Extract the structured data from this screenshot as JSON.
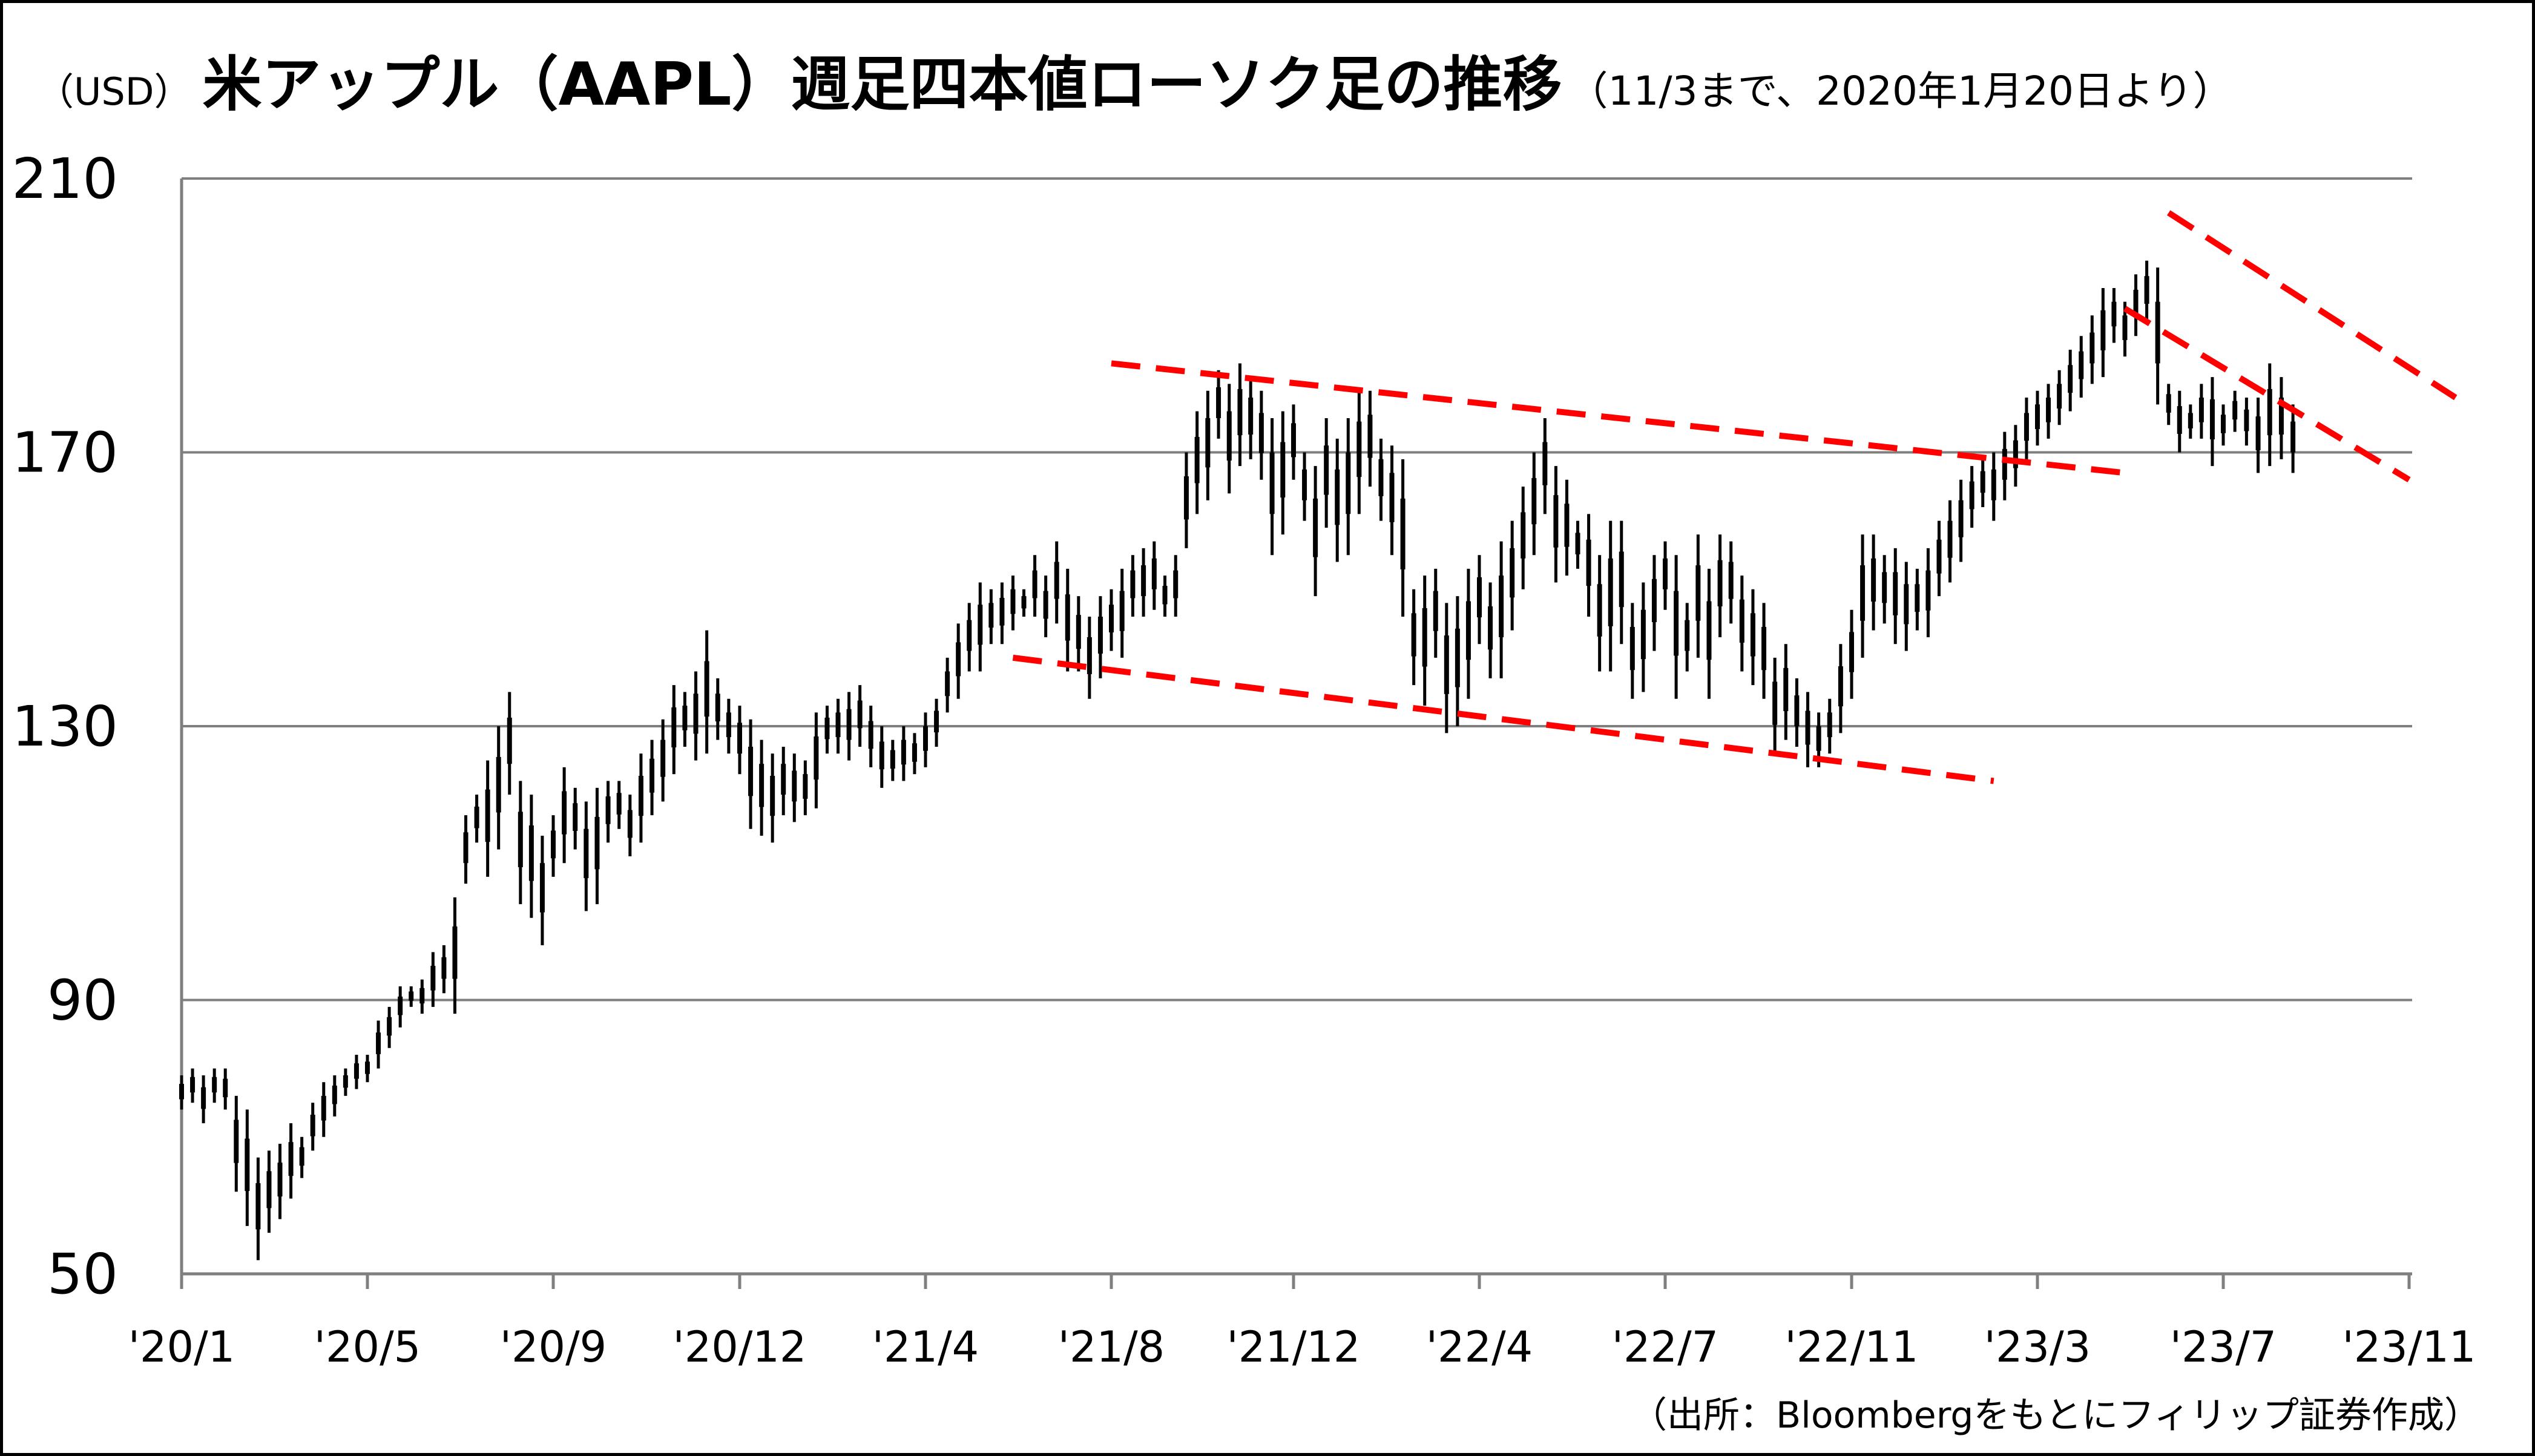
{
  "title": {
    "prefix": "（USD）",
    "main": "米アップル（AAPL）週足四本値ローソク足の推移",
    "note": "（11/3まで、2020年1月20日より）"
  },
  "source": "（出所：Bloombergをもとにフィリップ証券作成）",
  "chart_data": {
    "type": "candlestick",
    "title": "米アップル（AAPL）週足四本値ローソク足の推移",
    "ylabel": "（USD）",
    "ylim": [
      50,
      210
    ],
    "yticks": [
      "50",
      "90",
      "130",
      "170",
      "210"
    ],
    "xticks": [
      "'20/1",
      "'20/5",
      "'20/9",
      "'20/12",
      "'21/4",
      "'21/8",
      "'21/12",
      "'22/4",
      "'22/7",
      "'22/11",
      "'23/3",
      "'23/7",
      "'23/11"
    ],
    "grid": "horizontal",
    "week_count": 194,
    "weekly_ranges": [
      [
        74,
        79
      ],
      [
        75,
        80
      ],
      [
        72,
        79
      ],
      [
        75,
        80
      ],
      [
        74,
        80
      ],
      [
        62,
        76
      ],
      [
        57,
        74
      ],
      [
        52,
        67
      ],
      [
        56,
        68
      ],
      [
        58,
        69
      ],
      [
        61,
        72
      ],
      [
        64,
        70
      ],
      [
        68,
        75
      ],
      [
        70,
        78
      ],
      [
        73,
        79
      ],
      [
        76,
        80
      ],
      [
        77,
        82
      ],
      [
        78,
        82
      ],
      [
        80,
        87
      ],
      [
        83,
        89
      ],
      [
        86,
        92
      ],
      [
        89,
        92
      ],
      [
        88,
        93
      ],
      [
        89,
        97
      ],
      [
        91,
        98
      ],
      [
        88,
        105
      ],
      [
        107,
        117
      ],
      [
        113,
        120
      ],
      [
        108,
        125
      ],
      [
        112,
        130
      ],
      [
        120,
        135
      ],
      [
        104,
        122
      ],
      [
        102,
        120
      ],
      [
        98,
        114
      ],
      [
        108,
        117
      ],
      [
        110,
        124
      ],
      [
        112,
        121
      ],
      [
        103,
        119
      ],
      [
        104,
        121
      ],
      [
        113,
        122
      ],
      [
        115,
        122
      ],
      [
        111,
        120
      ],
      [
        113,
        126
      ],
      [
        117,
        128
      ],
      [
        119,
        131
      ],
      [
        123,
        136
      ],
      [
        127,
        135
      ],
      [
        125,
        138
      ],
      [
        126,
        144
      ],
      [
        128,
        137
      ],
      [
        126,
        134
      ],
      [
        123,
        133
      ],
      [
        115,
        131
      ],
      [
        114,
        128
      ],
      [
        113,
        126
      ],
      [
        117,
        127
      ],
      [
        116,
        126
      ],
      [
        117,
        125
      ],
      [
        118,
        132
      ],
      [
        126,
        133
      ],
      [
        126,
        134
      ],
      [
        125,
        135
      ],
      [
        127,
        136
      ],
      [
        124,
        133
      ],
      [
        121,
        130
      ],
      [
        122,
        128
      ],
      [
        122,
        130
      ],
      [
        123,
        129
      ],
      [
        124,
        132
      ],
      [
        127,
        134
      ],
      [
        132,
        140
      ],
      [
        134,
        145
      ],
      [
        138,
        148
      ],
      [
        138,
        151
      ],
      [
        142,
        150
      ],
      [
        142,
        151
      ],
      [
        144,
        152
      ],
      [
        146,
        150
      ],
      [
        146,
        155
      ],
      [
        143,
        152
      ],
      [
        145,
        157
      ],
      [
        138,
        153
      ],
      [
        138,
        149
      ],
      [
        134,
        146
      ],
      [
        137,
        149
      ],
      [
        141,
        150
      ],
      [
        140,
        153
      ],
      [
        146,
        155
      ],
      [
        146,
        156
      ],
      [
        147,
        157
      ],
      [
        146,
        152
      ],
      [
        146,
        155
      ],
      [
        156,
        170
      ],
      [
        161,
        176
      ],
      [
        163,
        179
      ],
      [
        172,
        182
      ],
      [
        164,
        180
      ],
      [
        168,
        183
      ],
      [
        169,
        181
      ],
      [
        166,
        179
      ],
      [
        155,
        175
      ],
      [
        158,
        176
      ],
      [
        166,
        177
      ],
      [
        160,
        170
      ],
      [
        149,
        168
      ],
      [
        159,
        175
      ],
      [
        154,
        172
      ],
      [
        155,
        175
      ],
      [
        161,
        179
      ],
      [
        165,
        179
      ],
      [
        160,
        172
      ],
      [
        155,
        171
      ],
      [
        146,
        169
      ],
      [
        136,
        150
      ],
      [
        133,
        152
      ],
      [
        140,
        153
      ],
      [
        129,
        148
      ],
      [
        130,
        149
      ],
      [
        134,
        153
      ],
      [
        142,
        155
      ],
      [
        137,
        151
      ],
      [
        137,
        157
      ],
      [
        144,
        160
      ],
      [
        150,
        165
      ],
      [
        155,
        170
      ],
      [
        161,
        175
      ],
      [
        151,
        168
      ],
      [
        152,
        166
      ],
      [
        153,
        160
      ],
      [
        146,
        161
      ],
      [
        138,
        155
      ],
      [
        138,
        160
      ],
      [
        142,
        160
      ],
      [
        134,
        148
      ],
      [
        135,
        151
      ],
      [
        141,
        155
      ],
      [
        147,
        157
      ],
      [
        134,
        155
      ],
      [
        138,
        148
      ],
      [
        140,
        158
      ],
      [
        134,
        153
      ],
      [
        143,
        158
      ],
      [
        145,
        157
      ],
      [
        138,
        152
      ],
      [
        136,
        150
      ],
      [
        134,
        148
      ],
      [
        126,
        140
      ],
      [
        128,
        142
      ],
      [
        127,
        137
      ],
      [
        124,
        135
      ],
      [
        124,
        132
      ],
      [
        126,
        134
      ],
      [
        129,
        142
      ],
      [
        134,
        147
      ],
      [
        140,
        158
      ],
      [
        144,
        158
      ],
      [
        145,
        155
      ],
      [
        142,
        156
      ],
      [
        141,
        154
      ],
      [
        144,
        153
      ],
      [
        143,
        156
      ],
      [
        149,
        160
      ],
      [
        151,
        163
      ],
      [
        154,
        166
      ],
      [
        159,
        168
      ],
      [
        162,
        169
      ],
      [
        160,
        170
      ],
      [
        163,
        173
      ],
      [
        165,
        174
      ],
      [
        169,
        178
      ],
      [
        171,
        179
      ],
      [
        172,
        180
      ],
      [
        174,
        182
      ],
      [
        176,
        185
      ],
      [
        178,
        187
      ],
      [
        180,
        190
      ],
      [
        181,
        194
      ],
      [
        186,
        194
      ],
      [
        184,
        192
      ],
      [
        187,
        196
      ],
      [
        189,
        198
      ],
      [
        177,
        197
      ],
      [
        174,
        180
      ],
      [
        170,
        179
      ],
      [
        172,
        177
      ],
      [
        172,
        180
      ],
      [
        168,
        181
      ],
      [
        171,
        177
      ],
      [
        173,
        179
      ],
      [
        171,
        178
      ],
      [
        167,
        178
      ],
      [
        168,
        183
      ],
      [
        169,
        181
      ],
      [
        167,
        177
      ]
    ],
    "trendlines": [
      {
        "from": [
          "'21/8",
          183
        ],
        "to": [
          "'23/5",
          167
        ]
      },
      {
        "from": [
          "'21/6",
          140
        ],
        "to": [
          "'23/2",
          122
        ]
      },
      {
        "from": [
          "'23/5",
          191
        ],
        "to": [
          "'23/11",
          166
        ]
      },
      {
        "from": [
          "'23/6",
          205
        ],
        "to": [
          "'23/12",
          178
        ]
      }
    ]
  },
  "style": {
    "candle_color": "#000000",
    "trend_color": "#ff0000",
    "grid_color": "#7f7f7f"
  }
}
